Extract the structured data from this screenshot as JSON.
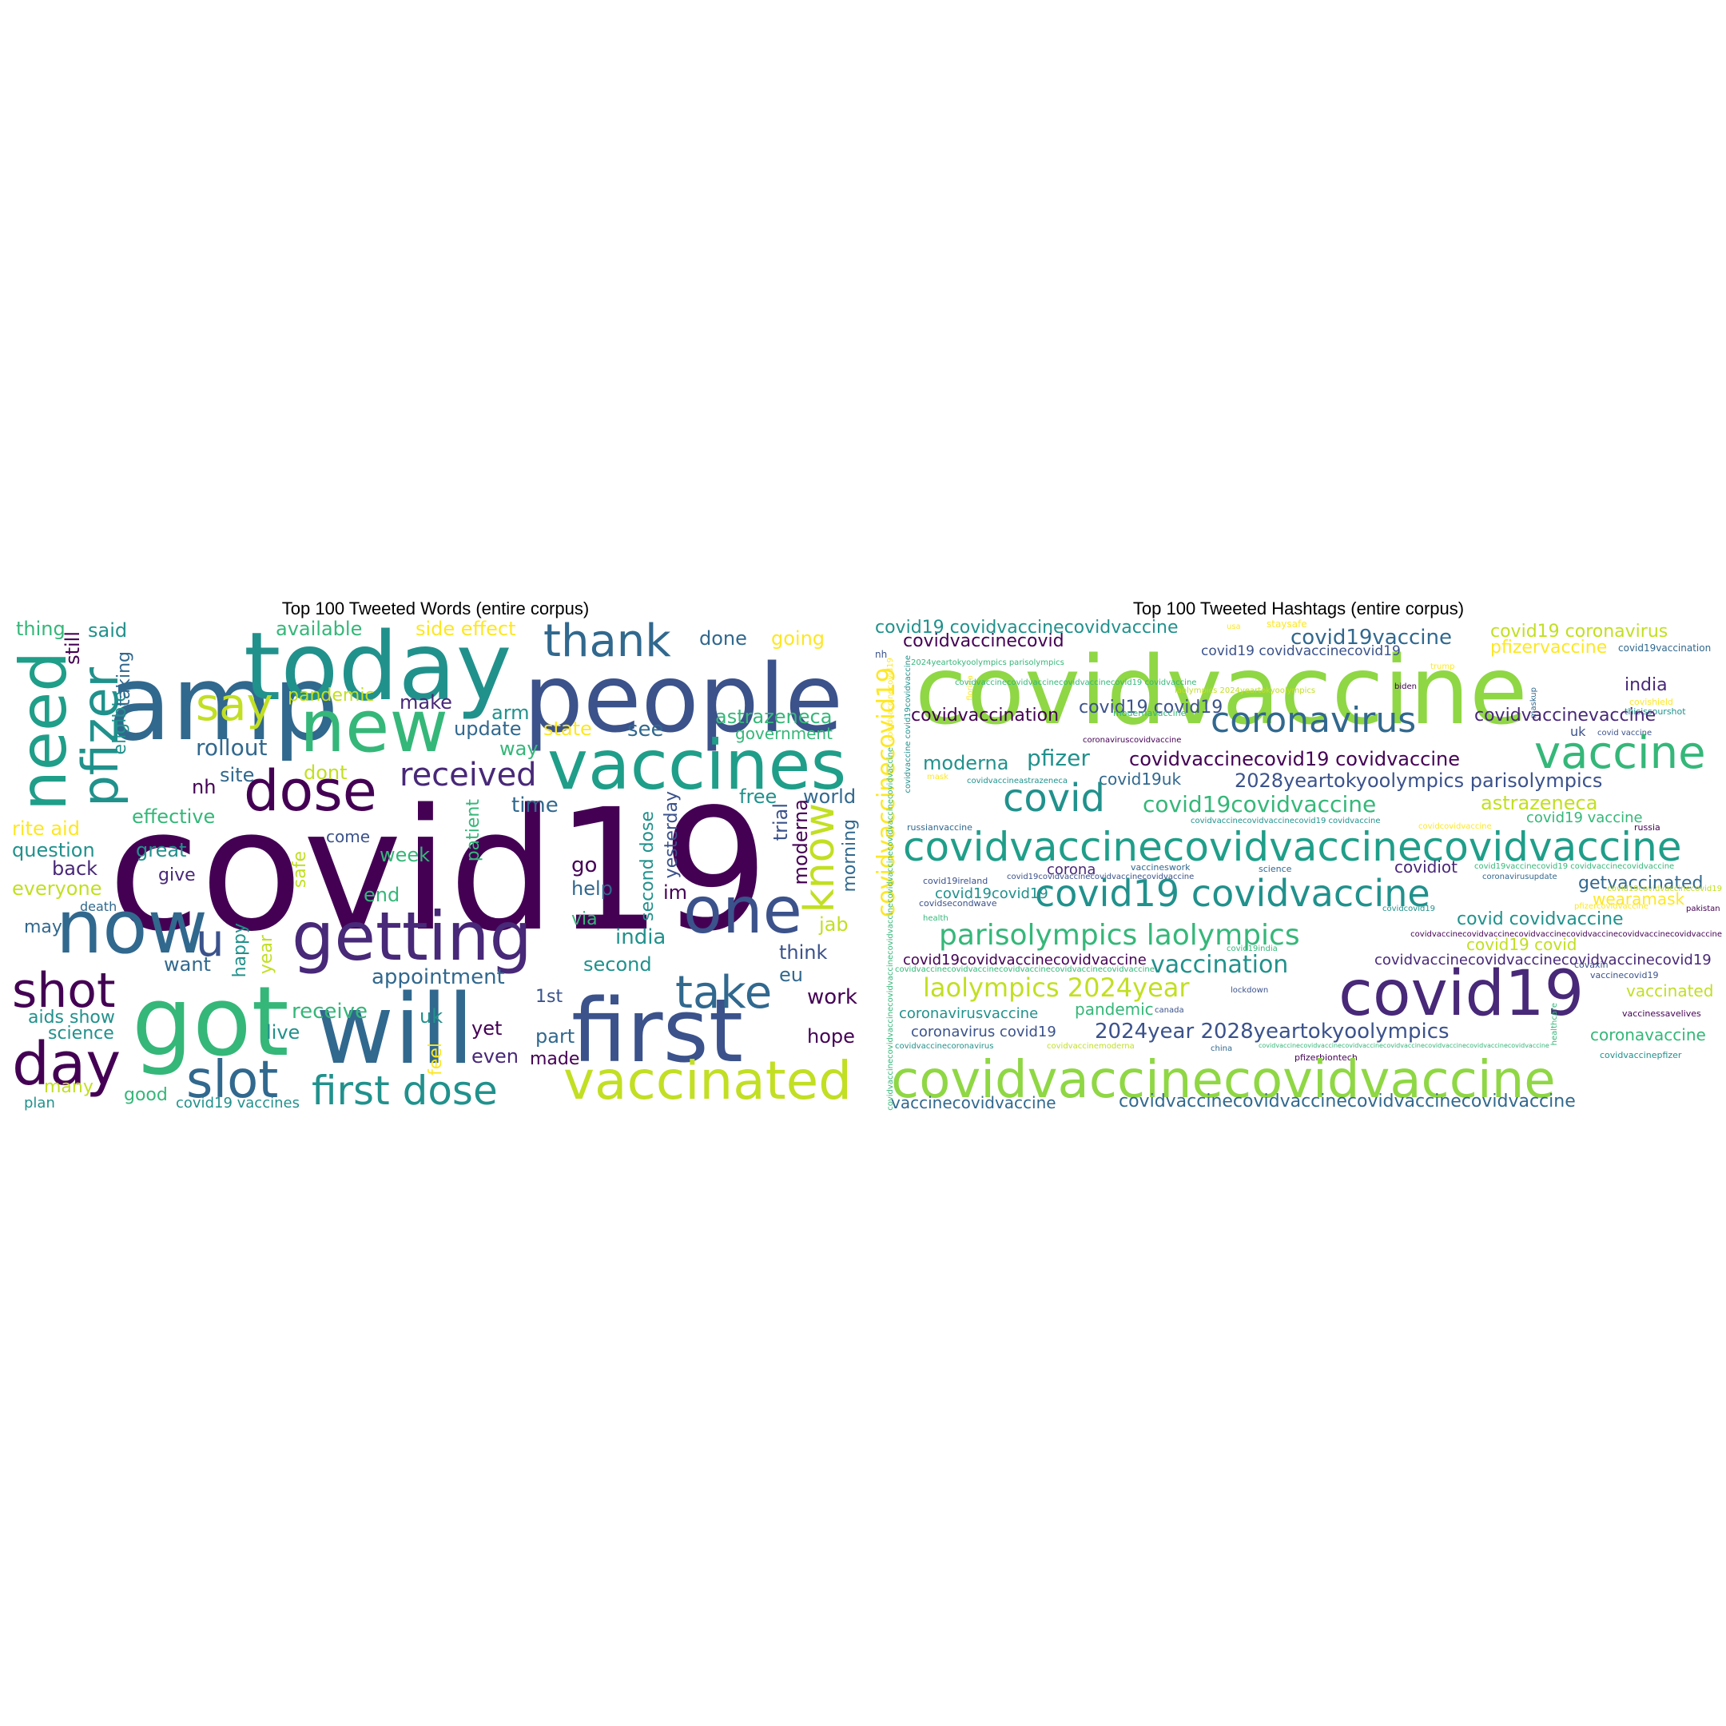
{
  "palette": {
    "dark_purple": "#440154",
    "indigo": "#3b528b",
    "teal_blue": "#31688e",
    "teal": "#21918c",
    "green_teal": "#1f9e89",
    "green": "#35b779",
    "lime": "#8fd744",
    "yellow_green": "#c2df23",
    "yellow": "#fde725"
  },
  "words_panel": {
    "title": "Top 100 Tweeted Words (entire corpus)",
    "words": [
      {
        "t": "covid19",
        "c": "#440154"
      },
      {
        "t": "amp",
        "c": "#31688e"
      },
      {
        "t": "today",
        "c": "#21918c"
      },
      {
        "t": "people",
        "c": "#3b528b"
      },
      {
        "t": "new",
        "c": "#35b779"
      },
      {
        "t": "vaccines",
        "c": "#1f9e89"
      },
      {
        "t": "dose",
        "c": "#440154"
      },
      {
        "t": "need",
        "c": "#1f9e89"
      },
      {
        "t": "pfizer",
        "c": "#21918c"
      },
      {
        "t": "say",
        "c": "#c2df23"
      },
      {
        "t": "thank",
        "c": "#31688e"
      },
      {
        "t": "now",
        "c": "#31688e"
      },
      {
        "t": "u",
        "c": "#3b528b"
      },
      {
        "t": "getting",
        "c": "#482878"
      },
      {
        "t": "one",
        "c": "#3b528b"
      },
      {
        "t": "got",
        "c": "#35b779"
      },
      {
        "t": "will",
        "c": "#31688e"
      },
      {
        "t": "first",
        "c": "#3b528b"
      },
      {
        "t": "day",
        "c": "#440154"
      },
      {
        "t": "shot",
        "c": "#440154"
      },
      {
        "t": "slot",
        "c": "#31688e"
      },
      {
        "t": "first dose",
        "c": "#21918c"
      },
      {
        "t": "vaccinated",
        "c": "#c2df23"
      },
      {
        "t": "take",
        "c": "#31688e"
      },
      {
        "t": "know",
        "c": "#c2df23"
      },
      {
        "t": "received",
        "c": "#482878"
      },
      {
        "t": "thing",
        "c": "#35b779"
      },
      {
        "t": "said",
        "c": "#21918c"
      },
      {
        "t": "available",
        "c": "#35b779"
      },
      {
        "t": "side effect",
        "c": "#fde725"
      },
      {
        "t": "done",
        "c": "#31688e"
      },
      {
        "t": "going",
        "c": "#fde725"
      },
      {
        "t": "still",
        "c": "#440154"
      },
      {
        "t": "eligible",
        "c": "#21918c"
      },
      {
        "t": "taking",
        "c": "#31688e"
      },
      {
        "t": "pandemic",
        "c": "#c2df23"
      },
      {
        "t": "make",
        "c": "#482878"
      },
      {
        "t": "arm",
        "c": "#21918c"
      },
      {
        "t": "astrazeneca",
        "c": "#35b779"
      },
      {
        "t": "update",
        "c": "#31688e"
      },
      {
        "t": "state",
        "c": "#fde725"
      },
      {
        "t": "see",
        "c": "#31688e"
      },
      {
        "t": "government",
        "c": "#35b779"
      },
      {
        "t": "rollout",
        "c": "#31688e"
      },
      {
        "t": "way",
        "c": "#35b779"
      },
      {
        "t": "site",
        "c": "#31688e"
      },
      {
        "t": "dont",
        "c": "#c2df23"
      },
      {
        "t": "nh",
        "c": "#440154"
      },
      {
        "t": "effective",
        "c": "#35b779"
      },
      {
        "t": "time",
        "c": "#31688e"
      },
      {
        "t": "free",
        "c": "#21918c"
      },
      {
        "t": "world",
        "c": "#31688e"
      },
      {
        "t": "come",
        "c": "#3b528b"
      },
      {
        "t": "patient",
        "c": "#35b779"
      },
      {
        "t": "trial",
        "c": "#3b528b"
      },
      {
        "t": "moderna",
        "c": "#440154"
      },
      {
        "t": "morning",
        "c": "#31688e"
      },
      {
        "t": "rite aid",
        "c": "#fde725"
      },
      {
        "t": "question",
        "c": "#21918c"
      },
      {
        "t": "great",
        "c": "#21918c"
      },
      {
        "t": "back",
        "c": "#482878"
      },
      {
        "t": "give",
        "c": "#482878"
      },
      {
        "t": "everyone",
        "c": "#c2df23"
      },
      {
        "t": "death",
        "c": "#31688e"
      },
      {
        "t": "safe",
        "c": "#c2df23"
      },
      {
        "t": "week",
        "c": "#35b779"
      },
      {
        "t": "end",
        "c": "#35b779"
      },
      {
        "t": "go",
        "c": "#440154"
      },
      {
        "t": "help",
        "c": "#31688e"
      },
      {
        "t": "second dose",
        "c": "#21918c"
      },
      {
        "t": "yesterday",
        "c": "#3b528b"
      },
      {
        "t": "im",
        "c": "#440154"
      },
      {
        "t": "jab",
        "c": "#c2df23"
      },
      {
        "t": "may",
        "c": "#31688e"
      },
      {
        "t": "happy",
        "c": "#21918c"
      },
      {
        "t": "year",
        "c": "#c2df23"
      },
      {
        "t": "india",
        "c": "#21918c"
      },
      {
        "t": "via",
        "c": "#35b779"
      },
      {
        "t": "want",
        "c": "#31688e"
      },
      {
        "t": "appointment",
        "c": "#31688e"
      },
      {
        "t": "second",
        "c": "#21918c"
      },
      {
        "t": "think",
        "c": "#3b528b"
      },
      {
        "t": "eu",
        "c": "#31688e"
      },
      {
        "t": "work",
        "c": "#440154"
      },
      {
        "t": "1st",
        "c": "#3b528b"
      },
      {
        "t": "aids show",
        "c": "#21918c"
      },
      {
        "t": "receive",
        "c": "#35b779"
      },
      {
        "t": "uk",
        "c": "#21918c"
      },
      {
        "t": "live",
        "c": "#21918c"
      },
      {
        "t": "feel",
        "c": "#fde725"
      },
      {
        "t": "yet",
        "c": "#440154"
      },
      {
        "t": "part",
        "c": "#31688e"
      },
      {
        "t": "hope",
        "c": "#440154"
      },
      {
        "t": "science",
        "c": "#21918c"
      },
      {
        "t": "even",
        "c": "#482878"
      },
      {
        "t": "made",
        "c": "#440154"
      },
      {
        "t": "many",
        "c": "#c2df23"
      },
      {
        "t": "plan",
        "c": "#21918c"
      },
      {
        "t": "good",
        "c": "#35b779"
      },
      {
        "t": "covid19 vaccines",
        "c": "#21918c"
      }
    ]
  },
  "hashtags_panel": {
    "title": "Top 100 Tweeted Hashtags (entire corpus)",
    "words": [
      {
        "t": "covidvaccine",
        "c": "#8fd744"
      },
      {
        "t": "covid19 covidvaccinecovidvaccine",
        "c": "#21918c"
      },
      {
        "t": "covidvaccinecovid",
        "c": "#440154"
      },
      {
        "t": "staysafe",
        "c": "#fde725"
      },
      {
        "t": "covid19vaccine",
        "c": "#31688e"
      },
      {
        "t": "covid19 coronavirus",
        "c": "#c2df23"
      },
      {
        "t": "pfizervaccine",
        "c": "#fde725"
      },
      {
        "t": "covid19vaccination",
        "c": "#31688e"
      },
      {
        "t": "covid19 covidvaccinecovid19",
        "c": "#3b528b"
      },
      {
        "t": "nh",
        "c": "#3b528b"
      },
      {
        "t": "covidvaccinecovid19",
        "c": "#fde725"
      },
      {
        "t": "2024yeartokyoolympics parisolympics",
        "c": "#35b779"
      },
      {
        "t": "trump",
        "c": "#fde725"
      },
      {
        "t": "biden",
        "c": "#440154"
      },
      {
        "t": "florida",
        "c": "#fde725"
      },
      {
        "t": "maskup",
        "c": "#31688e"
      },
      {
        "t": "india",
        "c": "#482878"
      },
      {
        "t": "covishield",
        "c": "#fde725"
      },
      {
        "t": "thisissourshot",
        "c": "#21918c"
      },
      {
        "t": "covidvaccination",
        "c": "#440154"
      },
      {
        "t": "covid19 covid19",
        "c": "#3b528b"
      },
      {
        "t": "modernavaccine",
        "c": "#35b779"
      },
      {
        "t": "coronavirus",
        "c": "#31688e"
      },
      {
        "t": "covidvaccinevaccine",
        "c": "#482878"
      },
      {
        "t": "uk",
        "c": "#3b528b"
      },
      {
        "t": "covid vaccine",
        "c": "#3b528b"
      },
      {
        "t": "vaccine",
        "c": "#35b779"
      },
      {
        "t": "moderna",
        "c": "#21918c"
      },
      {
        "t": "pfizer",
        "c": "#21918c"
      },
      {
        "t": "covidvaccinecovid19 covidvaccine",
        "c": "#440154"
      },
      {
        "t": "coronaviruscovidvaccine",
        "c": "#440154"
      },
      {
        "t": "2028yeartokyoolympics parisolympics",
        "c": "#3b528b"
      },
      {
        "t": "mask",
        "c": "#fde725"
      },
      {
        "t": "covidvaccineastrazeneca",
        "c": "#21918c"
      },
      {
        "t": "covid19uk",
        "c": "#31688e"
      },
      {
        "t": "covid",
        "c": "#21918c"
      },
      {
        "t": "covid19covidvaccine",
        "c": "#35b779"
      },
      {
        "t": "astrazeneca",
        "c": "#c2df23"
      },
      {
        "t": "covid19 vaccine",
        "c": "#35b779"
      },
      {
        "t": "russianvaccine",
        "c": "#31688e"
      },
      {
        "t": "covidvaccinecovidvaccinecovid19 covidvaccine",
        "c": "#21918c"
      },
      {
        "t": "covidcovidvaccine",
        "c": "#fde725"
      },
      {
        "t": "russia",
        "c": "#440154"
      },
      {
        "t": "covidvaccinecovidvaccinecovidvaccine",
        "c": "#1f9e89"
      },
      {
        "t": "corona",
        "c": "#482878"
      },
      {
        "t": "vaccineswork",
        "c": "#31688e"
      },
      {
        "t": "covid19vaccinecovid19 covidvaccinecovidvaccine",
        "c": "#35b779"
      },
      {
        "t": "covid19ireland",
        "c": "#3b528b"
      },
      {
        "t": "covid19covidvaccinecovidvaccinecovidvaccine",
        "c": "#3b528b"
      },
      {
        "t": "covid19covid19",
        "c": "#21918c"
      },
      {
        "t": "science",
        "c": "#31688e"
      },
      {
        "t": "covidiot",
        "c": "#482878"
      },
      {
        "t": "coronavirusupdate",
        "c": "#31688e"
      },
      {
        "t": "getvaccinated",
        "c": "#31688e"
      },
      {
        "t": "wearamask",
        "c": "#fde725"
      },
      {
        "t": "covid19 covidvaccine",
        "c": "#21918c"
      },
      {
        "t": "covidsecondwave",
        "c": "#3b528b"
      },
      {
        "t": "health",
        "c": "#35b779"
      },
      {
        "t": "covidcovid19",
        "c": "#21918c"
      },
      {
        "t": "pakistan",
        "c": "#440154"
      },
      {
        "t": "pfizercovidvaccine",
        "c": "#fde725"
      },
      {
        "t": "covid covidvaccine",
        "c": "#21918c"
      },
      {
        "t": "parisolympics laolympics",
        "c": "#35b779"
      },
      {
        "t": "covidvaccinecovidvaccinecovidvaccinecovidvaccinecovidvaccinecovidvaccine",
        "c": "#440154"
      },
      {
        "t": "covid19india",
        "c": "#35b779"
      },
      {
        "t": "covid19 covid",
        "c": "#c2df23"
      },
      {
        "t": "covid19covidvaccinecovidvaccine",
        "c": "#440154"
      },
      {
        "t": "covidvaccinecovidvaccinecovidvaccinecovid19",
        "c": "#482878"
      },
      {
        "t": "vaccination",
        "c": "#21918c"
      },
      {
        "t": "covaxin",
        "c": "#3b528b"
      },
      {
        "t": "vaccinecovid19",
        "c": "#3b528b"
      },
      {
        "t": "covidvaccinecovidvaccinecovidvaccinecovidvaccinecovidvaccine",
        "c": "#35b779"
      },
      {
        "t": "covid19",
        "c": "#482878"
      },
      {
        "t": "laolympics 2024year",
        "c": "#c2df23"
      },
      {
        "t": "vaccinated",
        "c": "#c2df23"
      },
      {
        "t": "pandemic",
        "c": "#35b779"
      },
      {
        "t": "lockdown",
        "c": "#3b528b"
      },
      {
        "t": "canada",
        "c": "#3b528b"
      },
      {
        "t": "healthcare",
        "c": "#35b779"
      },
      {
        "t": "coronavirusvaccine",
        "c": "#21918c"
      },
      {
        "t": "vaccinessavelives",
        "c": "#440154"
      },
      {
        "t": "2024year 2028yeartokyoolympics",
        "c": "#3b528b"
      },
      {
        "t": "coronavirus covid19",
        "c": "#3b528b"
      },
      {
        "t": "coronavaccine",
        "c": "#35b779"
      },
      {
        "t": "covidvaccinecoronavirus",
        "c": "#21918c"
      },
      {
        "t": "covidvaccinemoderna",
        "c": "#c2df23"
      },
      {
        "t": "china",
        "c": "#31688e"
      },
      {
        "t": "covidvaccinecovidvaccinecovidvaccinecovidvaccinecovidvaccinecovidvaccinecovidvaccine",
        "c": "#35b779"
      },
      {
        "t": "pfizerbiontech",
        "c": "#440154"
      },
      {
        "t": "covidvaccinepfizer",
        "c": "#21918c"
      },
      {
        "t": "covid19covidvaccinecovid19",
        "c": "#c2df23"
      },
      {
        "t": "covidvaccinecovidvaccine",
        "c": "#8fd744"
      },
      {
        "t": "vaccinecovidvaccine",
        "c": "#31688e"
      },
      {
        "t": "covidvaccinecovidvaccinecovidvaccinecovidvaccine",
        "c": "#31688e"
      },
      {
        "t": "covidvaccinecovid19",
        "c": "#fde725"
      },
      {
        "t": "covidvaccine covid19covidvaccine",
        "c": "#21918c"
      },
      {
        "t": "covidvaccinecovidvaccinecovidvaccinecovid19 covidvaccine",
        "c": "#35b779"
      },
      {
        "t": "covidvaccinecovidvaccinecovidvaccinecovidvaccinecovidvaccinecovidvaccinecovidvaccine",
        "c": "#35b779"
      },
      {
        "t": "usa",
        "c": "#fde725"
      },
      {
        "t": "laolympics 2024yeartokyoolympics",
        "c": "#c2df23"
      }
    ]
  }
}
